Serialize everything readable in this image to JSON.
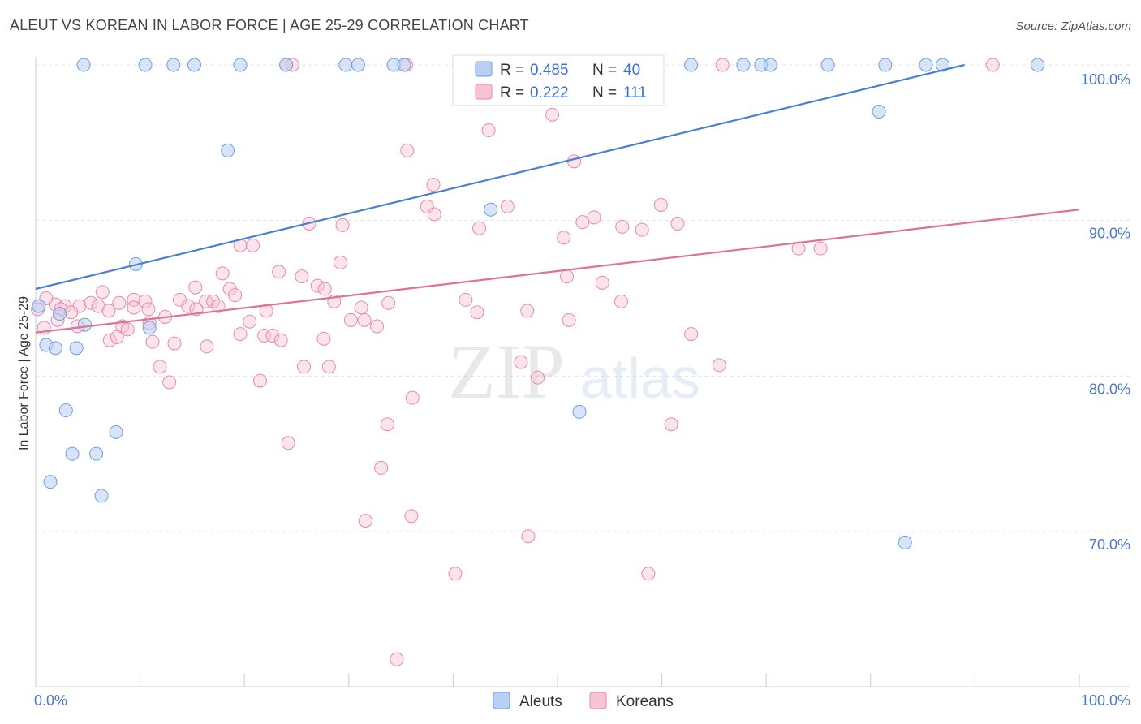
{
  "header": {
    "title": "ALEUT VS KOREAN IN LABOR FORCE | AGE 25-29 CORRELATION CHART",
    "source": "Source: ZipAtlas.com"
  },
  "watermark": {
    "zip": "ZIP",
    "atlas": "atlas"
  },
  "legend": {
    "r_label": "R =",
    "n_label": "N =",
    "items": [
      {
        "name": "Aleuts",
        "r": "0.485",
        "n": "40",
        "color": "#6f9de0",
        "fill": "#b8d0f3"
      },
      {
        "name": "Koreans",
        "r": "0.222",
        "n": "111",
        "color": "#e88aa8",
        "fill": "#f7c4d5"
      }
    ]
  },
  "chart_data": {
    "type": "scatter",
    "title": "ALEUT VS KOREAN IN LABOR FORCE | AGE 25-29 CORRELATION CHART",
    "xlabel": "",
    "ylabel": "In Labor Force | Age 25-29",
    "xlim": [
      0,
      100
    ],
    "ylim": [
      60,
      101
    ],
    "x_tick_labels": [
      "0.0%",
      "100.0%"
    ],
    "y_ticks": [
      70,
      80,
      90,
      100
    ],
    "y_tick_labels": [
      "70.0%",
      "80.0%",
      "90.0%",
      "100.0%"
    ],
    "grid": true,
    "legend_position": "top-center",
    "series": [
      {
        "name": "Aleuts",
        "color": "#4a7fd4",
        "trend": {
          "x": [
            0,
            89
          ],
          "y": [
            85.6,
            100.0
          ]
        },
        "points": [
          [
            4.6,
            100
          ],
          [
            10.5,
            100
          ],
          [
            13.2,
            100
          ],
          [
            15.2,
            100
          ],
          [
            19.6,
            100
          ],
          [
            24.0,
            100
          ],
          [
            29.7,
            100
          ],
          [
            30.9,
            100
          ],
          [
            34.3,
            100
          ],
          [
            35.3,
            100
          ],
          [
            62.8,
            100
          ],
          [
            67.8,
            100
          ],
          [
            69.5,
            100
          ],
          [
            70.4,
            100
          ],
          [
            75.9,
            100
          ],
          [
            81.4,
            100
          ],
          [
            85.3,
            100
          ],
          [
            86.9,
            100
          ],
          [
            96.0,
            100
          ],
          [
            80.8,
            97.0
          ],
          [
            18.4,
            94.5
          ],
          [
            43.6,
            90.7
          ],
          [
            9.6,
            87.2
          ],
          [
            0.3,
            84.5
          ],
          [
            2.3,
            84.0
          ],
          [
            4.7,
            83.3
          ],
          [
            10.9,
            83.1
          ],
          [
            1.0,
            82.0
          ],
          [
            1.9,
            81.8
          ],
          [
            3.9,
            81.8
          ],
          [
            2.9,
            77.8
          ],
          [
            7.7,
            76.4
          ],
          [
            52.1,
            77.7
          ],
          [
            3.5,
            75.0
          ],
          [
            5.8,
            75.0
          ],
          [
            1.4,
            73.2
          ],
          [
            6.3,
            72.3
          ],
          [
            83.3,
            69.3
          ]
        ]
      },
      {
        "name": "Koreans",
        "color": "#e07098",
        "trend": {
          "x": [
            0,
            100
          ],
          "y": [
            82.8,
            90.7
          ]
        },
        "points": [
          [
            24.0,
            100
          ],
          [
            24.6,
            100
          ],
          [
            35.5,
            100
          ],
          [
            40.6,
            100
          ],
          [
            49.2,
            100
          ],
          [
            65.8,
            100
          ],
          [
            91.7,
            100
          ],
          [
            49.5,
            96.8
          ],
          [
            43.4,
            95.8
          ],
          [
            35.6,
            94.5
          ],
          [
            51.6,
            93.8
          ],
          [
            38.1,
            92.3
          ],
          [
            37.5,
            90.9
          ],
          [
            38.2,
            90.4
          ],
          [
            45.2,
            90.9
          ],
          [
            59.9,
            91.0
          ],
          [
            26.2,
            89.8
          ],
          [
            29.4,
            89.7
          ],
          [
            42.5,
            89.5
          ],
          [
            52.4,
            89.9
          ],
          [
            53.5,
            90.2
          ],
          [
            56.2,
            89.6
          ],
          [
            58.1,
            89.4
          ],
          [
            61.5,
            89.8
          ],
          [
            50.6,
            88.9
          ],
          [
            19.6,
            88.4
          ],
          [
            20.8,
            88.4
          ],
          [
            73.1,
            88.2
          ],
          [
            75.2,
            88.2
          ],
          [
            29.2,
            87.3
          ],
          [
            17.9,
            86.6
          ],
          [
            23.3,
            86.7
          ],
          [
            25.5,
            86.4
          ],
          [
            27.0,
            85.8
          ],
          [
            27.7,
            85.6
          ],
          [
            15.3,
            85.7
          ],
          [
            18.6,
            85.6
          ],
          [
            50.9,
            86.4
          ],
          [
            54.3,
            86.0
          ],
          [
            6.4,
            85.4
          ],
          [
            1.0,
            85.0
          ],
          [
            2.8,
            84.5
          ],
          [
            4.2,
            84.5
          ],
          [
            5.3,
            84.7
          ],
          [
            6.0,
            84.5
          ],
          [
            8.0,
            84.7
          ],
          [
            9.4,
            84.9
          ],
          [
            10.5,
            84.8
          ],
          [
            13.8,
            84.9
          ],
          [
            14.6,
            84.5
          ],
          [
            16.3,
            84.8
          ],
          [
            17.0,
            84.8
          ],
          [
            19.1,
            85.2
          ],
          [
            28.6,
            84.8
          ],
          [
            33.8,
            84.7
          ],
          [
            41.2,
            84.9
          ],
          [
            56.1,
            84.8
          ],
          [
            0.2,
            84.3
          ],
          [
            1.9,
            84.6
          ],
          [
            2.4,
            84.3
          ],
          [
            3.4,
            84.1
          ],
          [
            7.0,
            84.2
          ],
          [
            9.4,
            84.4
          ],
          [
            10.8,
            84.3
          ],
          [
            15.4,
            84.3
          ],
          [
            17.5,
            84.5
          ],
          [
            22.1,
            84.2
          ],
          [
            31.2,
            84.4
          ],
          [
            42.3,
            84.1
          ],
          [
            47.1,
            84.2
          ],
          [
            0.8,
            83.1
          ],
          [
            2.1,
            83.6
          ],
          [
            4.0,
            83.2
          ],
          [
            8.3,
            83.2
          ],
          [
            8.8,
            83.0
          ],
          [
            10.9,
            83.4
          ],
          [
            12.4,
            83.8
          ],
          [
            20.5,
            83.5
          ],
          [
            30.2,
            83.6
          ],
          [
            31.5,
            83.6
          ],
          [
            32.7,
            83.2
          ],
          [
            51.1,
            83.6
          ],
          [
            7.1,
            82.3
          ],
          [
            7.8,
            82.5
          ],
          [
            11.2,
            82.2
          ],
          [
            13.3,
            82.1
          ],
          [
            16.4,
            81.9
          ],
          [
            19.6,
            82.7
          ],
          [
            21.9,
            82.6
          ],
          [
            22.7,
            82.6
          ],
          [
            23.5,
            82.3
          ],
          [
            27.6,
            82.4
          ],
          [
            62.8,
            82.7
          ],
          [
            11.9,
            80.6
          ],
          [
            25.7,
            80.6
          ],
          [
            28.1,
            80.6
          ],
          [
            46.5,
            80.9
          ],
          [
            65.5,
            80.7
          ],
          [
            12.8,
            79.6
          ],
          [
            21.5,
            79.7
          ],
          [
            48.1,
            79.9
          ],
          [
            36.1,
            78.6
          ],
          [
            33.7,
            76.9
          ],
          [
            60.9,
            76.9
          ],
          [
            24.2,
            75.7
          ],
          [
            33.1,
            74.1
          ],
          [
            36.0,
            71.0
          ],
          [
            31.6,
            70.7
          ],
          [
            47.2,
            69.7
          ],
          [
            40.2,
            67.3
          ],
          [
            58.7,
            67.3
          ],
          [
            34.6,
            61.8
          ]
        ]
      }
    ]
  }
}
